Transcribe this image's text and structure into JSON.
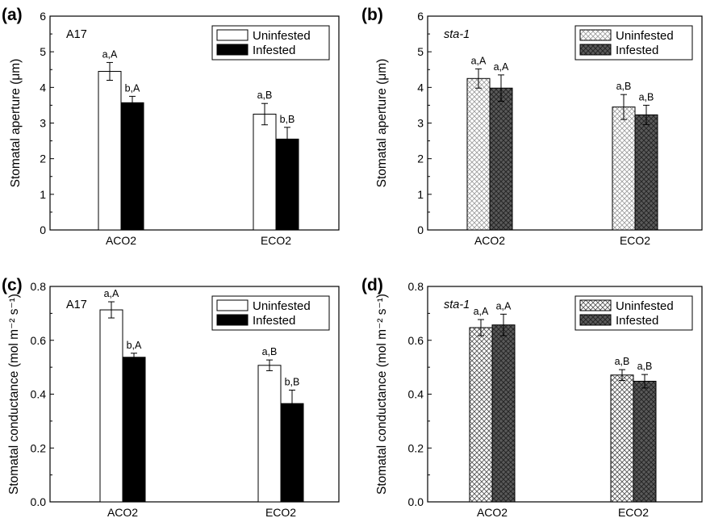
{
  "chart_data": [
    {
      "panel_label": "(a)",
      "type": "bar",
      "genotype": "A17",
      "genotype_italic": false,
      "ylabel": "Stomatal aperture (μm)",
      "ylim": [
        0,
        6
      ],
      "yticks": [
        "0",
        "1",
        "2",
        "3",
        "4",
        "5",
        "6"
      ],
      "categories": [
        "ACO2",
        "ECO2"
      ],
      "legend_position": "top-right",
      "series": [
        {
          "name": "Uninfested",
          "values": [
            4.45,
            3.25
          ],
          "errors": [
            0.25,
            0.3
          ],
          "letters": [
            "a,A",
            "a,B"
          ],
          "style": "white"
        },
        {
          "name": "Infested",
          "values": [
            3.57,
            2.55
          ],
          "errors": [
            0.18,
            0.33
          ],
          "letters": [
            "b,A",
            "b,B"
          ],
          "style": "black"
        }
      ]
    },
    {
      "panel_label": "(b)",
      "type": "bar",
      "genotype": "sta-1",
      "genotype_italic": true,
      "ylabel": "Stomatal aperture (μm)",
      "ylim": [
        0,
        6
      ],
      "yticks": [
        "0",
        "1",
        "2",
        "3",
        "4",
        "5",
        "6"
      ],
      "categories": [
        "ACO2",
        "ECO2"
      ],
      "legend_position": "top-right",
      "series": [
        {
          "name": "Uninfested",
          "values": [
            4.25,
            3.45
          ],
          "errors": [
            0.27,
            0.35
          ],
          "letters": [
            "a,A",
            "a,B"
          ],
          "style": "hatch-light"
        },
        {
          "name": "Infested",
          "values": [
            3.98,
            3.23
          ],
          "errors": [
            0.37,
            0.27
          ],
          "letters": [
            "a,A",
            "a,B"
          ],
          "style": "hatch-dark"
        }
      ]
    },
    {
      "panel_label": "(c)",
      "type": "bar",
      "genotype": "A17",
      "genotype_italic": false,
      "ylabel": "Stomatal conductance (mol m⁻² s⁻¹)",
      "ylim": [
        0,
        0.8
      ],
      "yticks": [
        "0.0",
        "0.2",
        "0.4",
        "0.6",
        "0.8"
      ],
      "categories": [
        "ACO2",
        "ECO2"
      ],
      "legend_position": "top-right",
      "series": [
        {
          "name": "Uninfested",
          "values": [
            0.713,
            0.507
          ],
          "errors": [
            0.03,
            0.02
          ],
          "letters": [
            "a,A",
            "a,B"
          ],
          "style": "white"
        },
        {
          "name": "Infested",
          "values": [
            0.537,
            0.365
          ],
          "errors": [
            0.015,
            0.05
          ],
          "letters": [
            "b,A",
            "b,B"
          ],
          "style": "black"
        }
      ]
    },
    {
      "panel_label": "(d)",
      "type": "bar",
      "genotype": "sta-1",
      "genotype_italic": true,
      "ylabel": "Stomatal conductance (mol m⁻² s⁻¹)",
      "ylim": [
        0,
        0.8
      ],
      "yticks": [
        "0.0",
        "0.2",
        "0.4",
        "0.6",
        "0.8"
      ],
      "categories": [
        "ACO2",
        "ECO2"
      ],
      "legend_position": "top-right",
      "series": [
        {
          "name": "Uninfested",
          "values": [
            0.647,
            0.471
          ],
          "errors": [
            0.03,
            0.02
          ],
          "letters": [
            "a,A",
            "a,B"
          ],
          "style": "hatch-light"
        },
        {
          "name": "Infested",
          "values": [
            0.657,
            0.448
          ],
          "errors": [
            0.04,
            0.025
          ],
          "letters": [
            "a,A",
            "a,B"
          ],
          "style": "hatch-dark"
        }
      ]
    }
  ]
}
